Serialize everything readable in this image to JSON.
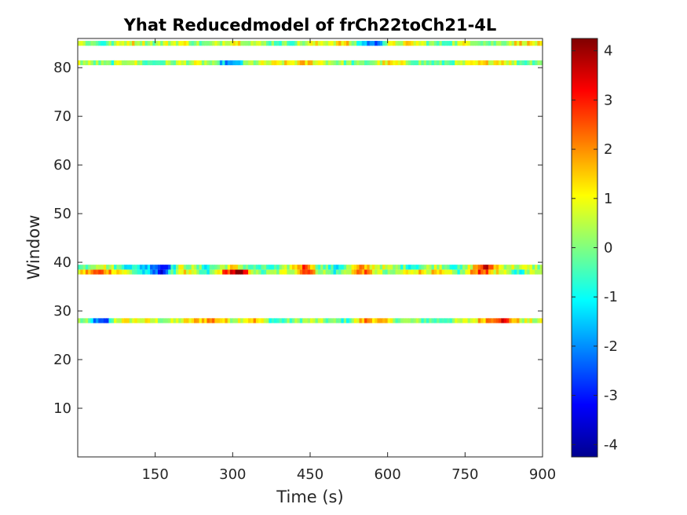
{
  "chart_data": {
    "type": "heatmap",
    "title": "Yhat Reducedmodel of frCh22toCh21-4L",
    "xlabel": "Time (s)",
    "ylabel": "Window",
    "xlim": [
      0,
      900
    ],
    "ylim": [
      0,
      86
    ],
    "xticks": [
      150,
      300,
      450,
      600,
      750,
      900
    ],
    "yticks": [
      10,
      20,
      30,
      40,
      50,
      60,
      70,
      80
    ],
    "colormap": "jet",
    "clim": [
      -4.25,
      4.25
    ],
    "colorbar_ticks": [
      -4,
      -3,
      -2,
      -1,
      0,
      1,
      2,
      3,
      4
    ],
    "bins_per_row": 180,
    "rows": [
      {
        "window": 28,
        "profile": [
          [
            0,
            0.3
          ],
          [
            20,
            -0.5
          ],
          [
            40,
            -2.8
          ],
          [
            55,
            -3.2
          ],
          [
            70,
            0.8
          ],
          [
            120,
            0.9
          ],
          [
            180,
            0.2
          ],
          [
            260,
            2.2
          ],
          [
            300,
            0.6
          ],
          [
            340,
            1.8
          ],
          [
            380,
            -0.8
          ],
          [
            450,
            0.4
          ],
          [
            520,
            -0.6
          ],
          [
            560,
            2.3
          ],
          [
            620,
            0.2
          ],
          [
            700,
            -0.4
          ],
          [
            760,
            0.6
          ],
          [
            800,
            2.6
          ],
          [
            820,
            3.4
          ],
          [
            860,
            0.7
          ],
          [
            900,
            0.4
          ]
        ]
      },
      {
        "window": 38,
        "profile": [
          [
            0,
            1.0
          ],
          [
            40,
            2.5
          ],
          [
            80,
            1.5
          ],
          [
            150,
            -2.5
          ],
          [
            165,
            -3.0
          ],
          [
            200,
            1.5
          ],
          [
            250,
            -1.2
          ],
          [
            290,
            3.0
          ],
          [
            310,
            4.0
          ],
          [
            320,
            3.5
          ],
          [
            350,
            -0.5
          ],
          [
            420,
            1.0
          ],
          [
            445,
            3.5
          ],
          [
            460,
            1.0
          ],
          [
            500,
            -0.8
          ],
          [
            550,
            2.5
          ],
          [
            600,
            -0.5
          ],
          [
            650,
            1.5
          ],
          [
            700,
            1.0
          ],
          [
            740,
            -0.5
          ],
          [
            780,
            3.2
          ],
          [
            800,
            1.5
          ],
          [
            850,
            -0.8
          ],
          [
            900,
            1.2
          ]
        ]
      },
      {
        "window": 39,
        "profile": [
          [
            0,
            -0.8
          ],
          [
            40,
            1.2
          ],
          [
            80,
            -0.4
          ],
          [
            150,
            -1.8
          ],
          [
            165,
            -3.2
          ],
          [
            200,
            0.8
          ],
          [
            250,
            -0.8
          ],
          [
            300,
            1.2
          ],
          [
            340,
            -0.6
          ],
          [
            390,
            -0.8
          ],
          [
            445,
            3.2
          ],
          [
            460,
            0.4
          ],
          [
            500,
            -1.2
          ],
          [
            550,
            1.8
          ],
          [
            600,
            0.3
          ],
          [
            650,
            -0.6
          ],
          [
            700,
            0.8
          ],
          [
            740,
            -1.0
          ],
          [
            790,
            3.5
          ],
          [
            820,
            0.8
          ],
          [
            900,
            0.2
          ]
        ]
      },
      {
        "window": 81,
        "profile": [
          [
            0,
            0.6
          ],
          [
            60,
            -0.4
          ],
          [
            100,
            1.0
          ],
          [
            140,
            -0.6
          ],
          [
            200,
            0.5
          ],
          [
            250,
            0.4
          ],
          [
            300,
            -2.5
          ],
          [
            330,
            0.2
          ],
          [
            400,
            0.9
          ],
          [
            450,
            1.4
          ],
          [
            500,
            0.3
          ],
          [
            550,
            -0.4
          ],
          [
            600,
            1.1
          ],
          [
            650,
            0.2
          ],
          [
            700,
            -0.5
          ],
          [
            760,
            0.6
          ],
          [
            820,
            1.6
          ],
          [
            860,
            -0.3
          ],
          [
            900,
            0.5
          ]
        ]
      },
      {
        "window": 85,
        "profile": [
          [
            0,
            0.8
          ],
          [
            50,
            -0.6
          ],
          [
            100,
            1.2
          ],
          [
            150,
            0.2
          ],
          [
            200,
            1.0
          ],
          [
            250,
            -0.4
          ],
          [
            300,
            1.5
          ],
          [
            350,
            0.3
          ],
          [
            400,
            -0.3
          ],
          [
            460,
            0.8
          ],
          [
            520,
            1.3
          ],
          [
            550,
            -1.2
          ],
          [
            575,
            -2.6
          ],
          [
            600,
            0.4
          ],
          [
            650,
            1.1
          ],
          [
            700,
            -0.5
          ],
          [
            760,
            1.0
          ],
          [
            800,
            -0.2
          ],
          [
            860,
            1.4
          ],
          [
            900,
            0.7
          ]
        ]
      }
    ]
  }
}
